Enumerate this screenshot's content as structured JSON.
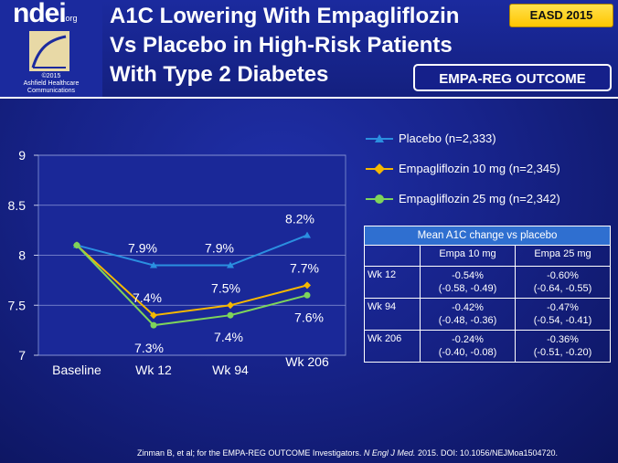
{
  "logo": {
    "brand": "ndei",
    "brand_suffix": ".org",
    "caption_line1": "©2015",
    "caption_line2": "Ashfield Healthcare",
    "caption_line3": "Communications"
  },
  "title": {
    "line1": "A1C Lowering With Empagliflozin",
    "line2": "Vs Placebo in High-Risk Patients",
    "line3": "With Type 2 Diabetes"
  },
  "badges": {
    "conference": "EASD 2015",
    "trial": "EMPA-REG OUTCOME"
  },
  "colors": {
    "placebo": "#2b8fe0",
    "empa10": "#f5b800",
    "empa25": "#7fd45a",
    "table_header": "#2f6fd0"
  },
  "chart_data": {
    "type": "line",
    "categories": [
      "Baseline",
      "Wk 12",
      "Wk 94",
      "Wk 206"
    ],
    "ylim": [
      7,
      9
    ],
    "yticks": [
      "7",
      "7.5",
      "8",
      "8.5",
      "9"
    ],
    "series": [
      {
        "name": "Placebo (n=2,333)",
        "values": [
          8.1,
          7.9,
          7.9,
          8.2
        ],
        "labels": [
          "",
          "7.9%",
          "7.9%",
          "8.2%"
        ],
        "marker": "triangle"
      },
      {
        "name": "Empagliflozin 10 mg (n=2,345)",
        "values": [
          8.1,
          7.4,
          7.5,
          7.7
        ],
        "labels": [
          "",
          "7.4%",
          "7.5%",
          "7.7%"
        ],
        "marker": "diamond"
      },
      {
        "name": "Empagliflozin 25 mg (n=2,342)",
        "values": [
          8.1,
          7.3,
          7.4,
          7.6
        ],
        "labels": [
          "",
          "7.3%",
          "7.4%",
          "7.6%"
        ],
        "marker": "circle"
      }
    ]
  },
  "table": {
    "caption": "Mean A1C change vs placebo",
    "columns": [
      "Empa 10 mg",
      "Empa 25 mg"
    ],
    "rows": [
      {
        "label": "Wk 12",
        "c1": "-0.54%",
        "c1_ci": "(-0.58, -0.49)",
        "c2": "-0.60%",
        "c2_ci": "(-0.64, -0.55)"
      },
      {
        "label": "Wk 94",
        "c1": "-0.42%",
        "c1_ci": "(-0.48, -0.36)",
        "c2": "-0.47%",
        "c2_ci": "(-0.54, -0.41)"
      },
      {
        "label": "Wk 206",
        "c1": "-0.24%",
        "c1_ci": "(-0.40, -0.08)",
        "c2": "-0.36%",
        "c2_ci": "(-0.51, -0.20)"
      }
    ]
  },
  "citation": {
    "prefix": "Zinman B, et al; for the EMPA-REG OUTCOME Investigators. ",
    "journal": "N Engl J Med.",
    "suffix": " 2015. DOI: 10.1056/NEJMoa1504720."
  }
}
